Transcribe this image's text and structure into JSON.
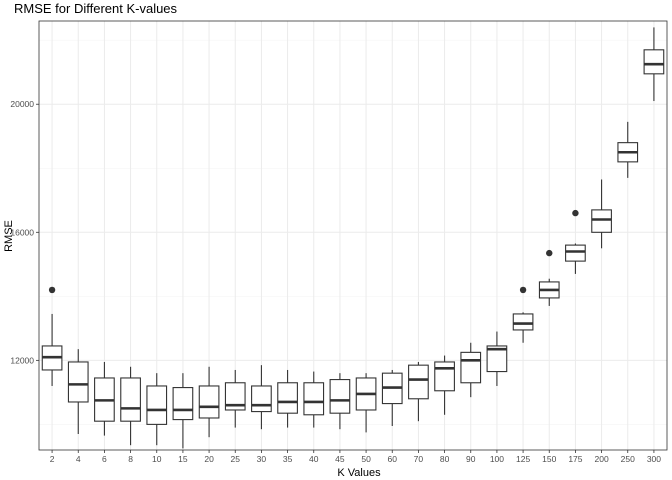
{
  "chart_data": {
    "type": "boxplot",
    "title": "RMSE for Different K-values",
    "xlabel": "K Values",
    "ylabel": "RMSE",
    "ylim": [
      9200,
      22600
    ],
    "yticks": [
      12000,
      16000,
      20000
    ],
    "grid": true,
    "legend": "none",
    "categories": [
      "2",
      "4",
      "6",
      "8",
      "10",
      "15",
      "20",
      "25",
      "30",
      "35",
      "40",
      "45",
      "50",
      "60",
      "70",
      "80",
      "90",
      "100",
      "125",
      "150",
      "175",
      "200",
      "250",
      "300"
    ],
    "boxes": [
      {
        "k": "2",
        "whisker_low": 11200,
        "q1": 11700,
        "median": 12100,
        "q3": 12450,
        "whisker_high": 13450,
        "outliers": [
          14200
        ]
      },
      {
        "k": "4",
        "whisker_low": 9700,
        "q1": 10700,
        "median": 11250,
        "q3": 11950,
        "whisker_high": 12350,
        "outliers": []
      },
      {
        "k": "6",
        "whisker_low": 9650,
        "q1": 10100,
        "median": 10750,
        "q3": 11450,
        "whisker_high": 11950,
        "outliers": []
      },
      {
        "k": "8",
        "whisker_low": 9350,
        "q1": 10100,
        "median": 10500,
        "q3": 11450,
        "whisker_high": 11800,
        "outliers": []
      },
      {
        "k": "10",
        "whisker_low": 9350,
        "q1": 10000,
        "median": 10450,
        "q3": 11200,
        "whisker_high": 11600,
        "outliers": []
      },
      {
        "k": "15",
        "whisker_low": 9250,
        "q1": 10150,
        "median": 10450,
        "q3": 11150,
        "whisker_high": 11600,
        "outliers": []
      },
      {
        "k": "20",
        "whisker_low": 9600,
        "q1": 10200,
        "median": 10550,
        "q3": 11200,
        "whisker_high": 11800,
        "outliers": []
      },
      {
        "k": "25",
        "whisker_low": 9900,
        "q1": 10450,
        "median": 10600,
        "q3": 11300,
        "whisker_high": 11700,
        "outliers": []
      },
      {
        "k": "30",
        "whisker_low": 9850,
        "q1": 10400,
        "median": 10600,
        "q3": 11200,
        "whisker_high": 11850,
        "outliers": []
      },
      {
        "k": "35",
        "whisker_low": 9900,
        "q1": 10350,
        "median": 10700,
        "q3": 11300,
        "whisker_high": 11700,
        "outliers": []
      },
      {
        "k": "40",
        "whisker_low": 9900,
        "q1": 10300,
        "median": 10700,
        "q3": 11300,
        "whisker_high": 11650,
        "outliers": []
      },
      {
        "k": "45",
        "whisker_low": 9850,
        "q1": 10350,
        "median": 10750,
        "q3": 11400,
        "whisker_high": 11600,
        "outliers": []
      },
      {
        "k": "50",
        "whisker_low": 9750,
        "q1": 10450,
        "median": 10950,
        "q3": 11450,
        "whisker_high": 11600,
        "outliers": []
      },
      {
        "k": "60",
        "whisker_low": 9950,
        "q1": 10650,
        "median": 11150,
        "q3": 11600,
        "whisker_high": 11700,
        "outliers": []
      },
      {
        "k": "70",
        "whisker_low": 10100,
        "q1": 10800,
        "median": 11400,
        "q3": 11850,
        "whisker_high": 11950,
        "outliers": []
      },
      {
        "k": "80",
        "whisker_low": 10300,
        "q1": 11050,
        "median": 11750,
        "q3": 11950,
        "whisker_high": 12150,
        "outliers": []
      },
      {
        "k": "90",
        "whisker_low": 10850,
        "q1": 11300,
        "median": 12000,
        "q3": 12250,
        "whisker_high": 12550,
        "outliers": []
      },
      {
        "k": "100",
        "whisker_low": 11200,
        "q1": 11650,
        "median": 12350,
        "q3": 12450,
        "whisker_high": 12900,
        "outliers": []
      },
      {
        "k": "125",
        "whisker_low": 12550,
        "q1": 12950,
        "median": 13150,
        "q3": 13450,
        "whisker_high": 13500,
        "outliers": [
          14200
        ]
      },
      {
        "k": "150",
        "whisker_low": 13700,
        "q1": 13950,
        "median": 14200,
        "q3": 14450,
        "whisker_high": 14550,
        "outliers": [
          15350
        ]
      },
      {
        "k": "175",
        "whisker_low": 14700,
        "q1": 15100,
        "median": 15400,
        "q3": 15600,
        "whisker_high": 15650,
        "outliers": [
          16600
        ]
      },
      {
        "k": "200",
        "whisker_low": 15500,
        "q1": 16000,
        "median": 16400,
        "q3": 16700,
        "whisker_high": 17650,
        "outliers": []
      },
      {
        "k": "250",
        "whisker_low": 17700,
        "q1": 18200,
        "median": 18500,
        "q3": 18800,
        "whisker_high": 19450,
        "outliers": []
      },
      {
        "k": "300",
        "whisker_low": 20100,
        "q1": 20950,
        "median": 21250,
        "q3": 21700,
        "whisker_high": 22400,
        "outliers": []
      }
    ],
    "colors": {
      "panel_background": "#ffffff",
      "panel_border": "#333333",
      "grid_major": "#ebebeb",
      "grid_minor": "#f5f5f5",
      "box_fill": "#ffffff",
      "box_stroke": "#333333",
      "outlier_fill": "#333333"
    }
  }
}
